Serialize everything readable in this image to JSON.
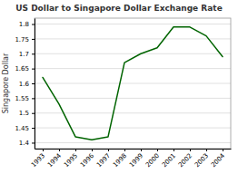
{
  "chart_data": {
    "type": "line",
    "title": "US Dollar to Singapore Dollar Exchange Rate",
    "ylabel": "Singapore Dollar",
    "x": [
      1993,
      1994,
      1995,
      1996,
      1997,
      1998,
      1999,
      2000,
      2001,
      2002,
      2003,
      2004
    ],
    "values": [
      1.62,
      1.53,
      1.42,
      1.41,
      1.42,
      1.67,
      1.7,
      1.72,
      1.79,
      1.79,
      1.76,
      1.69
    ],
    "color": "#006400",
    "xlim": [
      1992.5,
      2004.5
    ],
    "xticks": [
      1993,
      1994,
      1995,
      1996,
      1997,
      1998,
      1999,
      2000,
      2001,
      2002,
      2003,
      2004
    ],
    "ylim": [
      1.38,
      1.82
    ],
    "yticks": [
      1.4,
      1.45,
      1.5,
      1.55,
      1.6,
      1.65,
      1.7,
      1.75,
      1.8
    ],
    "grid": true
  }
}
